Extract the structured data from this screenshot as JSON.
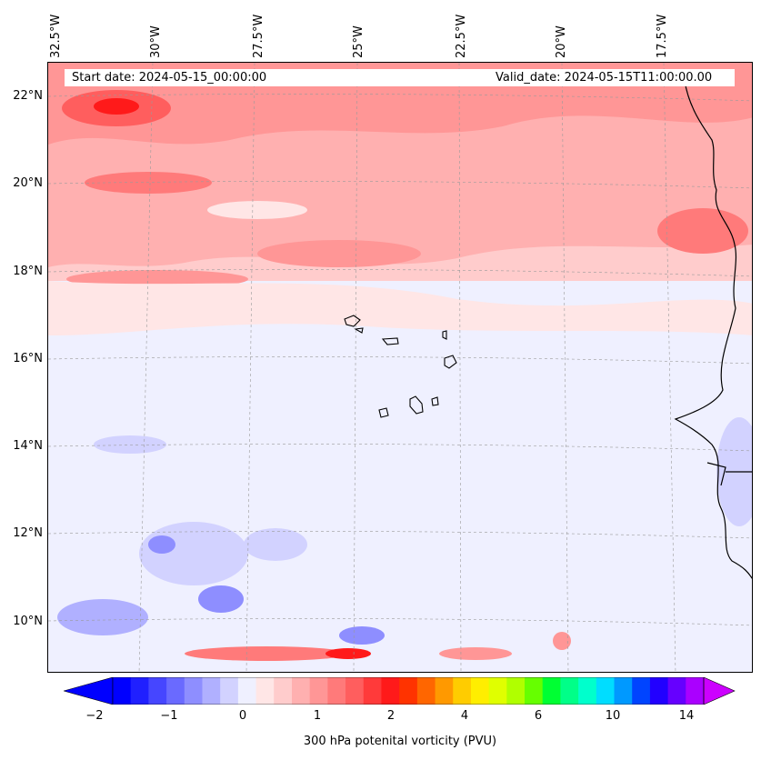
{
  "header": {
    "start_date": "Start date: 2024-05-15_00:00:00",
    "valid_date": "Valid_date: 2024-05-15T11:00:00.00"
  },
  "longitude_labels": [
    "32.5°W",
    "30°W",
    "27.5°W",
    "25°W",
    "22.5°W",
    "20°W",
    "17.5°W"
  ],
  "latitude_labels": [
    "22°N",
    "20°N",
    "18°N",
    "16°N",
    "14°N",
    "12°N",
    "10°N"
  ],
  "colorbar": {
    "title": "300 hPa potenital vorticity (PVU)",
    "ticks": [
      "−2",
      "−1",
      "0",
      "1",
      "2",
      "4",
      "6",
      "10",
      "14"
    ],
    "colors": [
      "#0000ff",
      "#2020ff",
      "#4646ff",
      "#6a6aff",
      "#8e8eff",
      "#b0b0ff",
      "#d2d2ff",
      "#eff0ff",
      "#ffe6e6",
      "#ffcccc",
      "#ffb0b0",
      "#ff9696",
      "#ff7a7a",
      "#ff5e5e",
      "#ff3a3a",
      "#ff1a1a",
      "#ff3300",
      "#ff6600",
      "#ff9900",
      "#ffcc00",
      "#ffee00",
      "#e0ff00",
      "#b0ff00",
      "#66ff00",
      "#00ff33",
      "#00ff88",
      "#00ffcc",
      "#00ddff",
      "#0099ff",
      "#0044ff",
      "#2200ff",
      "#6600ff",
      "#aa00ff"
    ],
    "under_color": "#0000ff",
    "over_color": "#cc00ff"
  }
}
